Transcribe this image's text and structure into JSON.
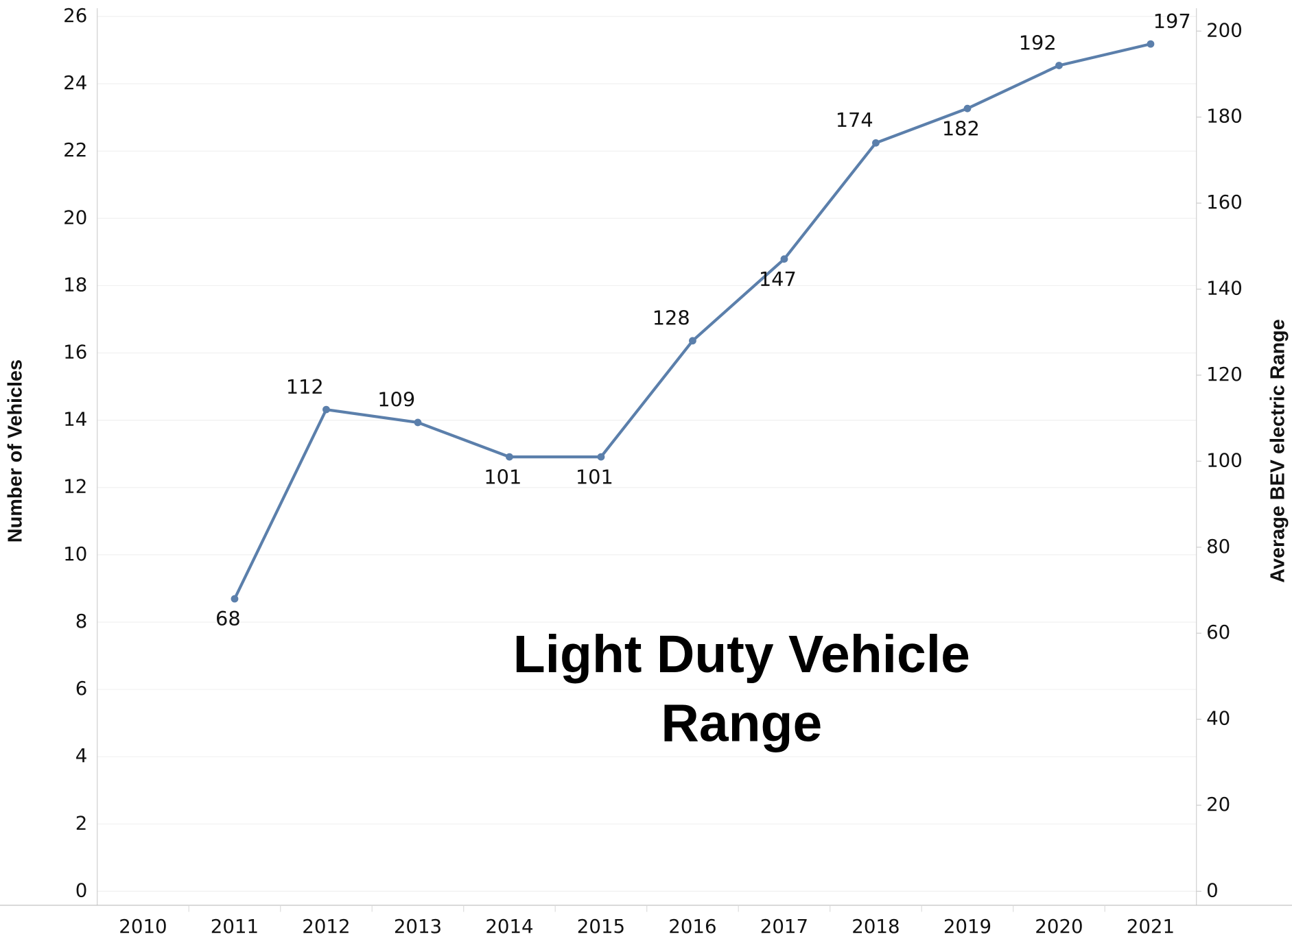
{
  "chart_data": {
    "type": "line",
    "title": "Light Duty Vehicle Range",
    "categories": [
      "2010",
      "2011",
      "2012",
      "2013",
      "2014",
      "2015",
      "2016",
      "2017",
      "2018",
      "2019",
      "2020",
      "2021"
    ],
    "y_label": "Number of Vehicles",
    "y2_label": "Average BEV electric Range",
    "ylim": [
      0,
      26
    ],
    "yticks": [
      0,
      2,
      4,
      6,
      8,
      10,
      12,
      14,
      16,
      18,
      20,
      22,
      24,
      26
    ],
    "y2lim": [
      0,
      203.4
    ],
    "y2ticks": [
      0,
      20,
      40,
      60,
      80,
      100,
      120,
      140,
      160,
      180,
      200
    ],
    "grid": true,
    "series": [
      {
        "name": "Average BEV electric Range",
        "color": "#5b7fab",
        "axis": "y2",
        "values": [
          null,
          68,
          112,
          109,
          101,
          101,
          128,
          147,
          174,
          182,
          192,
          197
        ]
      }
    ]
  }
}
